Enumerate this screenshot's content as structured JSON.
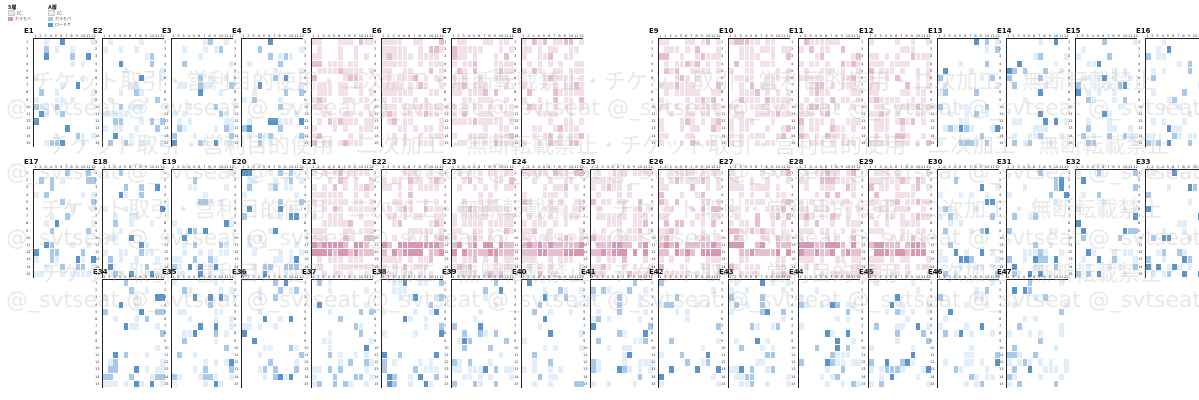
{
  "legend": {
    "groups": [
      {
        "title": "5層",
        "items": [
          {
            "label": "FC",
            "color": "#f3e1e8"
          },
          {
            "label": "カラモバ",
            "color": "#d896b0"
          }
        ]
      },
      {
        "title": "A層",
        "items": [
          {
            "label": "FC",
            "color": "#e2eef9"
          },
          {
            "label": "カラモバ",
            "color": "#a9c9ea"
          },
          {
            "label": "ローチケ",
            "color": "#5b93cc"
          }
        ]
      }
    ]
  },
  "blocks": [
    {
      "label": "E1",
      "theme": "blue"
    },
    {
      "label": "E2",
      "theme": "blue"
    },
    {
      "label": "E3",
      "theme": "blue"
    },
    {
      "label": "E4",
      "theme": "blue"
    },
    {
      "label": "E5",
      "theme": "pink"
    },
    {
      "label": "E6",
      "theme": "pink"
    },
    {
      "label": "E7",
      "theme": "pink"
    },
    {
      "label": "E8",
      "theme": "pink"
    },
    {
      "label": "E9",
      "theme": "pink"
    },
    {
      "label": "E10",
      "theme": "pink"
    },
    {
      "label": "E11",
      "theme": "pink"
    },
    {
      "label": "E12",
      "theme": "pink"
    },
    {
      "label": "E13",
      "theme": "blue"
    },
    {
      "label": "E14",
      "theme": "blue"
    },
    {
      "label": "E15",
      "theme": "blue"
    },
    {
      "label": "E16",
      "theme": "blue"
    },
    {
      "label": "E17",
      "theme": "blue"
    },
    {
      "label": "E18",
      "theme": "blue"
    },
    {
      "label": "E19",
      "theme": "blue"
    },
    {
      "label": "E20",
      "theme": "blue"
    },
    {
      "label": "E21",
      "theme": "pink"
    },
    {
      "label": "E22",
      "theme": "pink"
    },
    {
      "label": "E23",
      "theme": "pink"
    },
    {
      "label": "E24",
      "theme": "pink"
    },
    {
      "label": "E25",
      "theme": "pink"
    },
    {
      "label": "E26",
      "theme": "pink"
    },
    {
      "label": "E27",
      "theme": "pink"
    },
    {
      "label": "E28",
      "theme": "pink"
    },
    {
      "label": "E29",
      "theme": "pink"
    },
    {
      "label": "E30",
      "theme": "blue"
    },
    {
      "label": "E31",
      "theme": "blue"
    },
    {
      "label": "E32",
      "theme": "blue"
    },
    {
      "label": "E33",
      "theme": "blue"
    },
    {
      "label": "E34",
      "theme": "blue"
    },
    {
      "label": "E35",
      "theme": "blue"
    },
    {
      "label": "E36",
      "theme": "blue"
    },
    {
      "label": "E37",
      "theme": "blue"
    },
    {
      "label": "E38",
      "theme": "blue"
    },
    {
      "label": "E39",
      "theme": "blue"
    },
    {
      "label": "E40",
      "theme": "blue"
    },
    {
      "label": "E41",
      "theme": "blue"
    },
    {
      "label": "E42",
      "theme": "blue"
    },
    {
      "label": "E43",
      "theme": "blue"
    },
    {
      "label": "E44",
      "theme": "blue"
    },
    {
      "label": "E45",
      "theme": "blue"
    },
    {
      "label": "E46",
      "theme": "blue"
    },
    {
      "label": "E47",
      "theme": "blue"
    }
  ],
  "grid": {
    "columns": [
      "1",
      "2",
      "3",
      "4",
      "5",
      "6",
      "7",
      "8",
      "9",
      "10",
      "11",
      "12"
    ],
    "rows": [
      "1",
      "2",
      "3",
      "4",
      "5",
      "6",
      "7",
      "8",
      "9",
      "10",
      "11",
      "12",
      "13",
      "14",
      "15"
    ]
  },
  "watermark": {
    "line_a": "チケット取引・営利目的使用・二次加工・無断転載禁止・チケット取引・営利目的使用・二次加工・無断転載禁止",
    "line_b": "@_svtseat @_svtseat @_svtseat @_svtseat @_svtseat @_svtseat @_svtseat @_svtseat @_svtseat @_svtseat"
  },
  "colors": {
    "pink_light": "#f3e1e8",
    "pink_mid": "#e8bfd0",
    "pink_dark": "#d896b0",
    "blue_light": "#e2eef9",
    "blue_mid": "#a9c9ea",
    "blue_dark": "#5b93cc"
  }
}
